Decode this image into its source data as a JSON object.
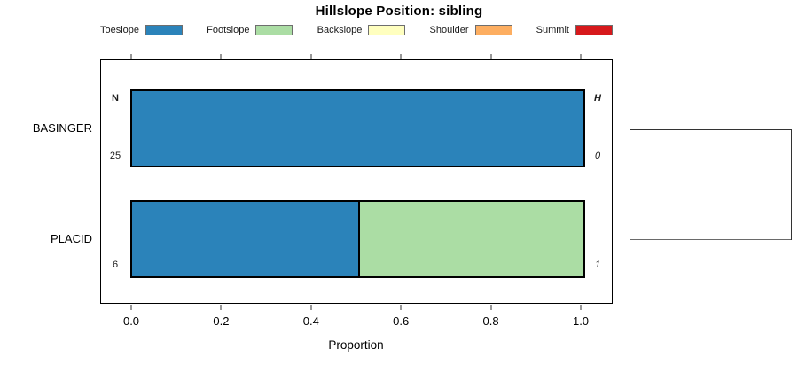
{
  "chart_data": {
    "type": "bar",
    "orientation": "horizontal",
    "stacked": true,
    "title": "Hillslope Position: sibling",
    "xlabel": "Proportion",
    "xlim": [
      0,
      1
    ],
    "x_ticks": [
      "0.0",
      "0.2",
      "0.4",
      "0.6",
      "0.8",
      "1.0"
    ],
    "grid": false,
    "legend_position": "top",
    "categories": [
      "BASINGER",
      "PLACID"
    ],
    "legend": [
      {
        "label": "Toeslope",
        "color": "#2b83ba"
      },
      {
        "label": "Footslope",
        "color": "#abdda4"
      },
      {
        "label": "Backslope",
        "color": "#ffffbf"
      },
      {
        "label": "Shoulder",
        "color": "#fdae61"
      },
      {
        "label": "Summit",
        "color": "#d7191c"
      }
    ],
    "series": [
      {
        "name": "Toeslope",
        "values": [
          1.0,
          0.5
        ]
      },
      {
        "name": "Footslope",
        "values": [
          0.0,
          0.5
        ]
      },
      {
        "name": "Backslope",
        "values": [
          0.0,
          0.0
        ]
      },
      {
        "name": "Shoulder",
        "values": [
          0.0,
          0.0
        ]
      },
      {
        "name": "Summit",
        "values": [
          0.0,
          0.0
        ]
      }
    ],
    "annotations": {
      "col_n_header": "N",
      "col_h_header": "H",
      "rows": [
        {
          "category": "BASINGER",
          "n": "25",
          "h": "0"
        },
        {
          "category": "PLACID",
          "n": "6",
          "h": "1"
        }
      ]
    },
    "dendrogram": {
      "present": true,
      "joins": [
        "BASINGER",
        "PLACID"
      ]
    }
  }
}
